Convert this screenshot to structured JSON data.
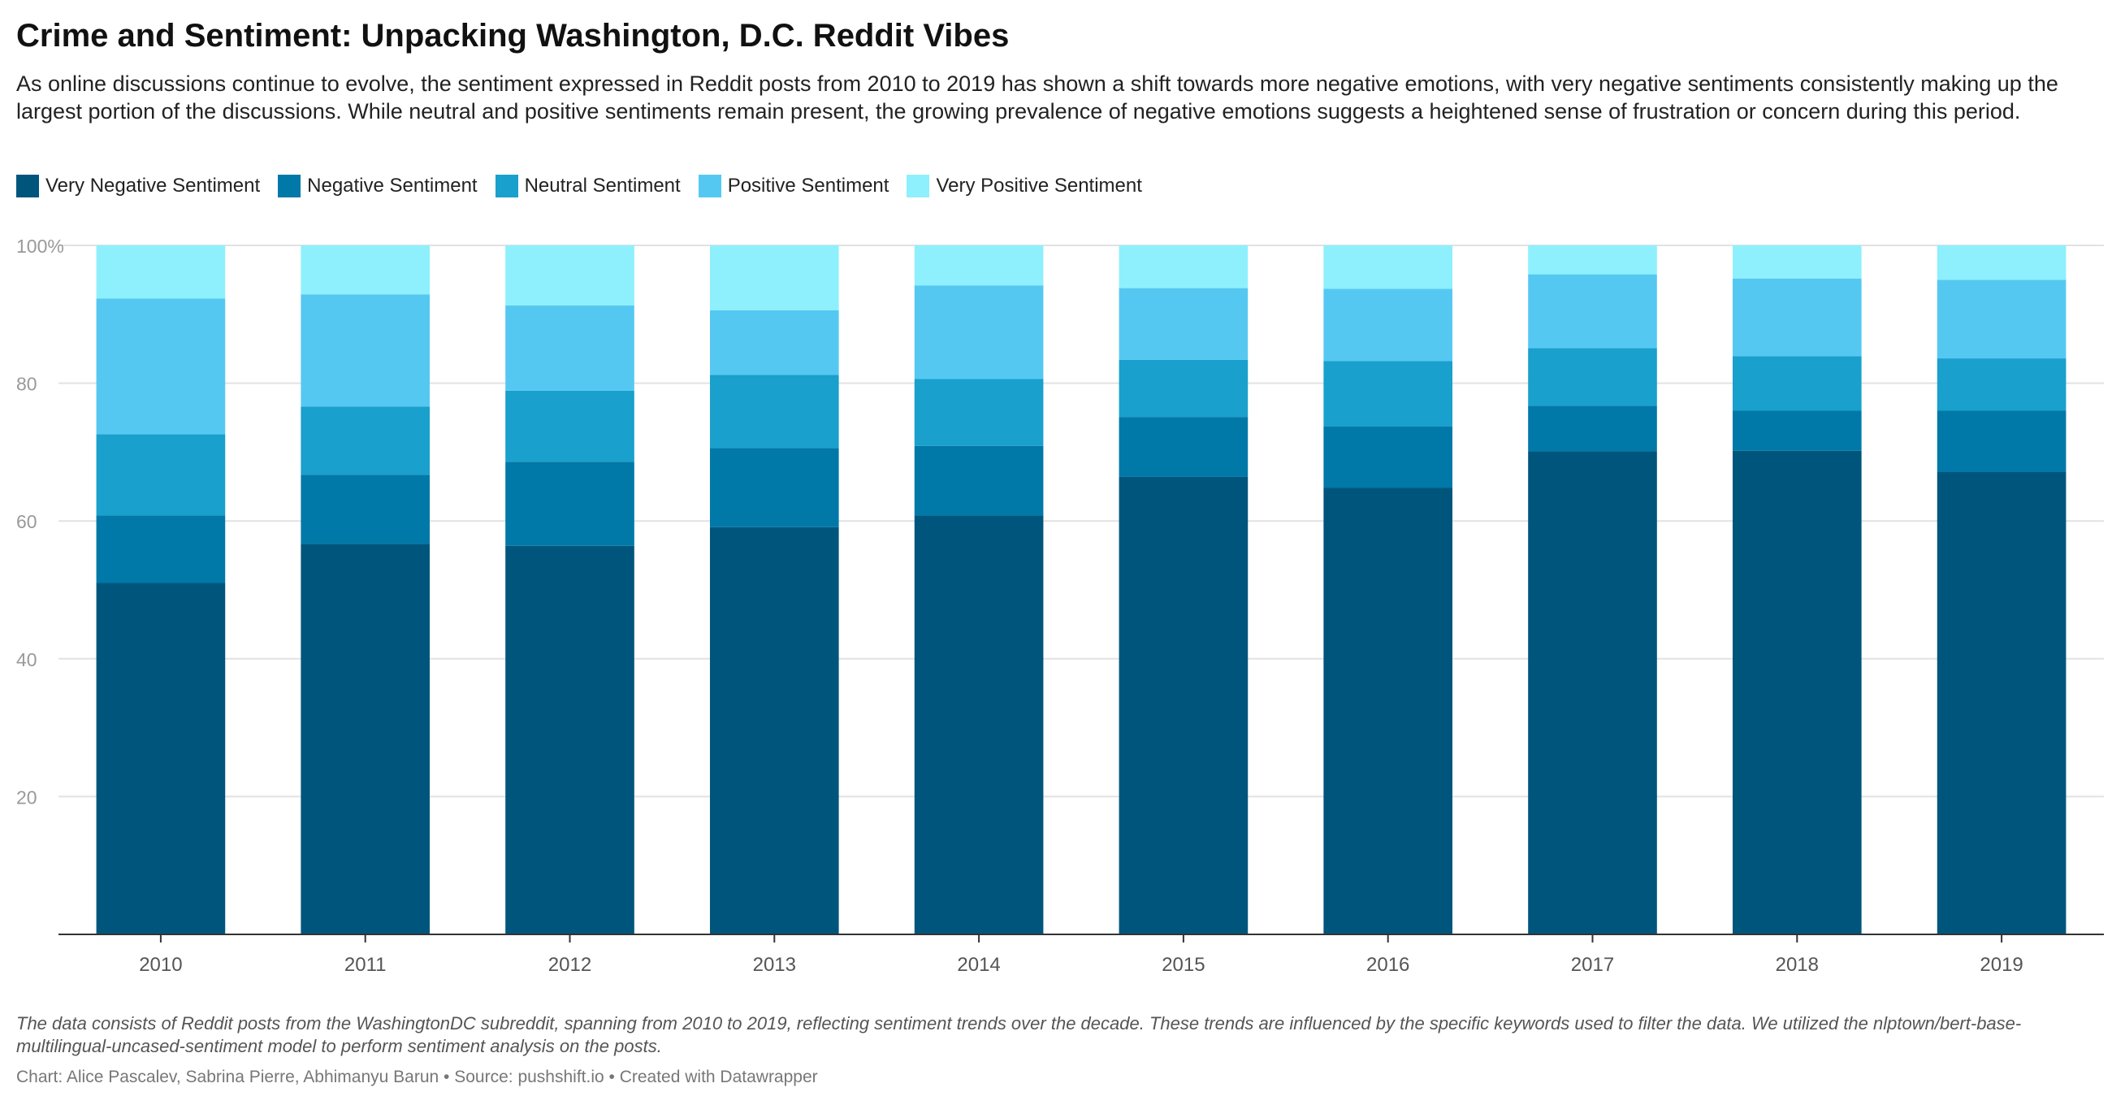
{
  "title": "Crime and Sentiment: Unpacking Washington, D.C. Reddit Vibes",
  "subtitle": "As online discussions continue to evolve, the sentiment expressed in Reddit posts from 2010 to 2019 has shown a shift towards more negative emotions, with very negative sentiments consistently making up the largest portion of the discussions. While neutral and positive sentiments remain present, the growing prevalence of negative emotions suggests a heightened sense of frustration or concern during this period.",
  "notes": "The data consists of Reddit posts from the WashingtonDC subreddit, spanning from 2010 to 2019, reflecting sentiment trends over the decade. These trends are influenced by the specific keywords used to filter the data. We utilized the nlptown/bert-base-multilingual-uncased-sentiment model to perform sentiment analysis on the posts.",
  "byline": "Chart: Alice Pascalev, Sabrina Pierre, Abhimanyu Barun • Source: pushshift.io • Created with Datawrapper",
  "chart_data": {
    "type": "bar",
    "stacked": true,
    "categories": [
      "2010",
      "2011",
      "2012",
      "2013",
      "2014",
      "2015",
      "2016",
      "2017",
      "2018",
      "2019"
    ],
    "series": [
      {
        "name": "Very Negative Sentiment",
        "color": "#00557c",
        "values": [
          51.0,
          56.7,
          56.4,
          59.1,
          60.8,
          66.4,
          64.8,
          70.1,
          70.2,
          67.1
        ]
      },
      {
        "name": "Negative Sentiment",
        "color": "#0078a8",
        "values": [
          9.8,
          10.0,
          12.2,
          11.5,
          10.1,
          8.7,
          8.9,
          6.6,
          5.8,
          8.9
        ]
      },
      {
        "name": "Neutral Sentiment",
        "color": "#19a0cc",
        "values": [
          11.8,
          9.9,
          10.3,
          10.6,
          9.7,
          8.3,
          9.5,
          8.4,
          7.9,
          7.6
        ]
      },
      {
        "name": "Positive Sentiment",
        "color": "#55c8f2",
        "values": [
          19.7,
          16.3,
          12.4,
          9.4,
          13.6,
          10.4,
          10.5,
          10.7,
          11.3,
          11.4
        ]
      },
      {
        "name": "Very Positive Sentiment",
        "color": "#8ef0fc",
        "values": [
          7.7,
          7.1,
          8.7,
          9.4,
          5.8,
          6.2,
          6.3,
          4.2,
          4.8,
          5.0
        ]
      }
    ],
    "ylim": [
      0,
      100
    ],
    "yticks": [
      20,
      40,
      60,
      80,
      100
    ],
    "ytick_labels": [
      "20",
      "40",
      "60",
      "80",
      "100%"
    ],
    "grid": true,
    "legend_position": "top-left"
  }
}
